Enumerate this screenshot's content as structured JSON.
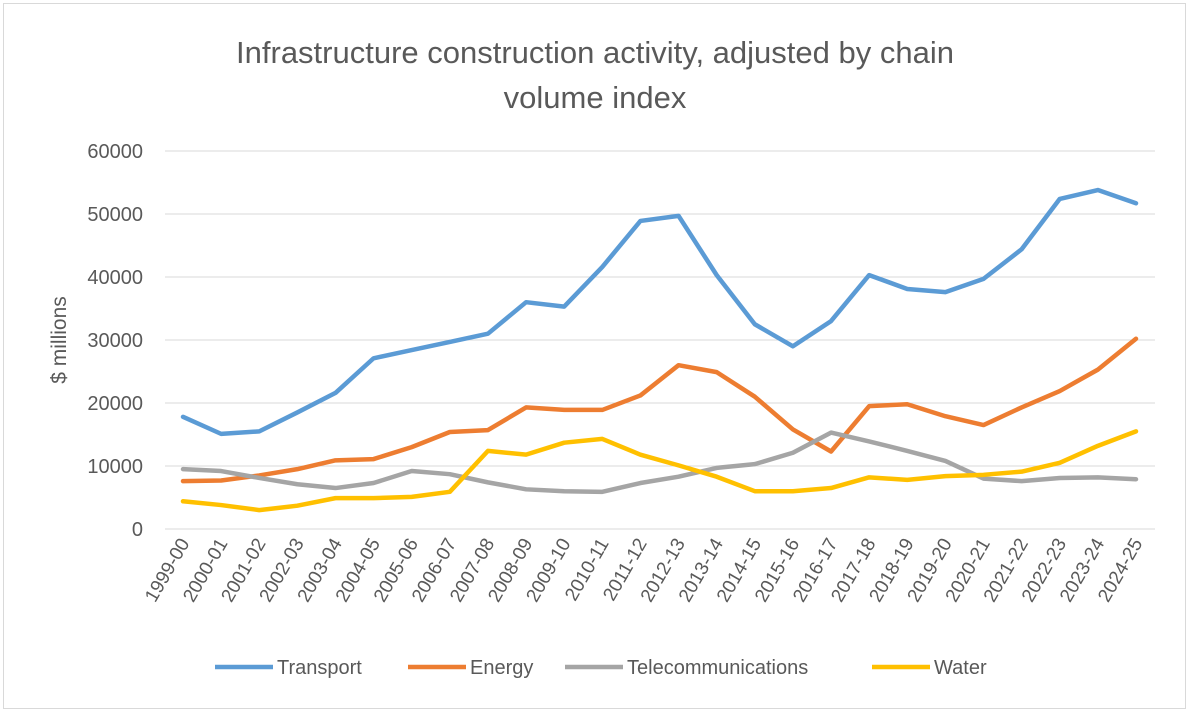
{
  "chart_data": {
    "type": "line",
    "title": "Infrastructure construction activity, adjusted by chain volume index",
    "title_lines": [
      "Infrastructure construction activity, adjusted by chain",
      "volume index"
    ],
    "xlabel": "",
    "ylabel": "$ millions",
    "ylim": [
      0,
      60000
    ],
    "yticks": [
      0,
      10000,
      20000,
      30000,
      40000,
      50000,
      60000
    ],
    "grid": true,
    "legend": "bottom",
    "categories": [
      "1999-00",
      "2000-01",
      "2001-02",
      "2002-03",
      "2003-04",
      "2004-05",
      "2005-06",
      "2006-07",
      "2007-08",
      "2008-09",
      "2009-10",
      "2010-11",
      "2011-12",
      "2012-13",
      "2013-14",
      "2014-15",
      "2015-16",
      "2016-17",
      "2017-18",
      "2018-19",
      "2019-20",
      "2020-21",
      "2021-22",
      "2022-23",
      "2023-24",
      "2024-25"
    ],
    "series": [
      {
        "name": "Transport",
        "color": "#5B9BD5",
        "values": [
          17800,
          15100,
          15500,
          18500,
          21600,
          27100,
          28400,
          29700,
          31000,
          36000,
          35300,
          41600,
          48900,
          49700,
          40300,
          32500,
          29000,
          33000,
          40300,
          38100,
          37600,
          39700,
          44400,
          52400,
          53800,
          51700
        ]
      },
      {
        "name": "Energy",
        "color": "#ED7D31",
        "values": [
          7600,
          7700,
          8500,
          9500,
          10900,
          11100,
          13000,
          15400,
          15700,
          19300,
          18900,
          18900,
          21200,
          26000,
          24900,
          21000,
          15800,
          12300,
          19500,
          19800,
          17900,
          16500,
          19300,
          21900,
          25300,
          30200
        ]
      },
      {
        "name": "Telecommunications",
        "color": "#A5A5A5",
        "values": [
          9500,
          9200,
          8100,
          7100,
          6500,
          7300,
          9200,
          8700,
          7400,
          6300,
          6000,
          5900,
          7300,
          8300,
          9700,
          10300,
          12100,
          15300,
          13900,
          12400,
          10800,
          8000,
          7600,
          8100,
          8200,
          7900
        ]
      },
      {
        "name": "Water",
        "color": "#FFC000",
        "values": [
          4400,
          3800,
          3000,
          3700,
          4900,
          4900,
          5100,
          5900,
          12400,
          11800,
          13700,
          14300,
          11800,
          10100,
          8300,
          6000,
          6000,
          6500,
          8200,
          7800,
          8400,
          8600,
          9100,
          10500,
          13200,
          15500
        ]
      }
    ]
  }
}
